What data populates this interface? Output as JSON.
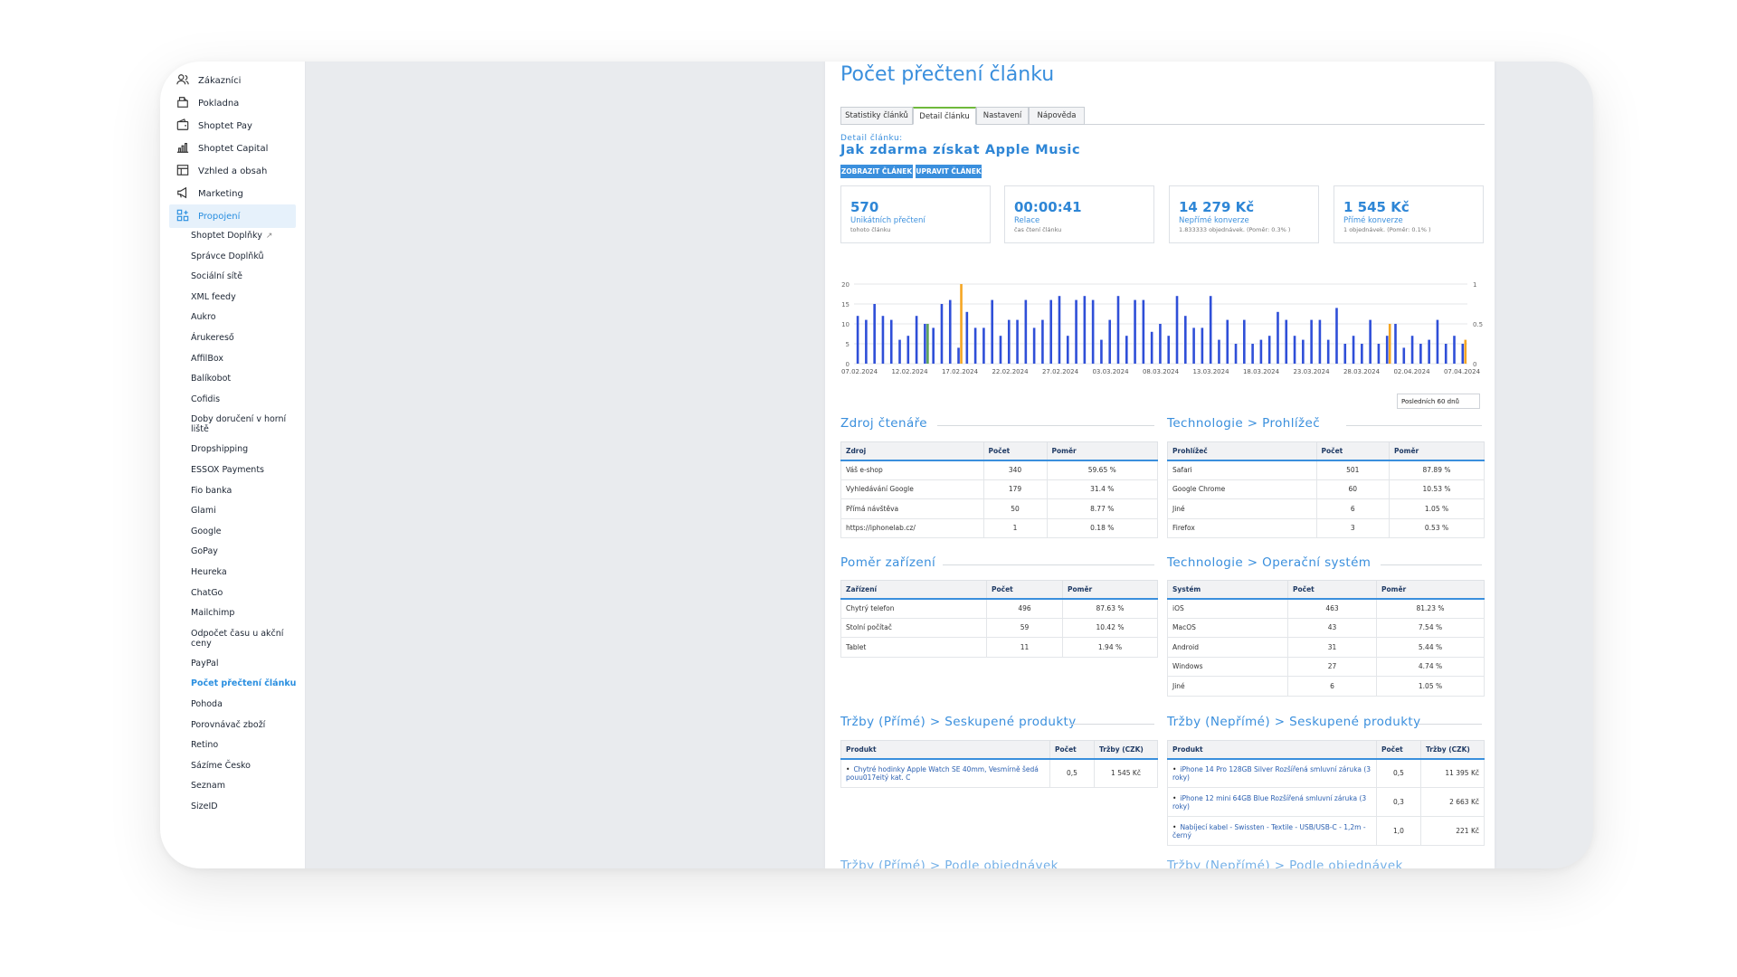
{
  "sidebar": {
    "main_items": [
      {
        "label": "Zákazníci",
        "icon": "customers-icon"
      },
      {
        "label": "Pokladna",
        "icon": "cash-register-icon"
      },
      {
        "label": "Shoptet Pay",
        "icon": "wallet-icon"
      },
      {
        "label": "Shoptet Capital",
        "icon": "capital-icon"
      },
      {
        "label": "Vzhled a obsah",
        "icon": "layout-icon"
      },
      {
        "label": "Marketing",
        "icon": "megaphone-icon"
      },
      {
        "label": "Propojení",
        "icon": "connections-icon"
      }
    ],
    "sub_items": [
      "Shoptet Doplňky",
      "Správce Doplňků",
      "Sociální sítě",
      "XML feedy",
      "Aukro",
      "Árukereső",
      "AffilBox",
      "Balíkobot",
      "Cofidis",
      "Doby doručení v horní liště",
      "Dropshipping",
      "ESSOX Payments",
      "Fio banka",
      "Glami",
      "Google",
      "GoPay",
      "Heureka",
      "ChatGo",
      "Mailchimp",
      "Odpočet času u akční ceny",
      "PayPal",
      "Počet přečtení článku",
      "Pohoda",
      "Porovnávač zboží",
      "Retino",
      "Sázíme Česko",
      "Seznam",
      "SizeID"
    ]
  },
  "page": {
    "title": "Počet přečtení článku",
    "tabs": [
      "Statistiky článků",
      "Detail článku",
      "Nastavení",
      "Nápověda"
    ],
    "detail_label": "Detail článku:",
    "article_title": "Jak zdarma získat Apple Music",
    "btn_show": "ZOBRAZIT ČLÁNEK",
    "btn_edit": "UPRAVIT ČLÁNEK"
  },
  "cards": [
    {
      "value": "570",
      "label": "Unikátních přečtení",
      "sub": "tohoto článku"
    },
    {
      "value": "00:00:41",
      "label": "Relace",
      "sub": "čas čtení článku"
    },
    {
      "value": "14 279 Kč",
      "label": "Nepřímé konverze",
      "sub": "1.833333 objednávek. (Poměr: 0.3% )"
    },
    {
      "value": "1 545 Kč",
      "label": "Přímé konverze",
      "sub": "1 objednávek. (Poměr: 0.1% )"
    }
  ],
  "chart_data": {
    "type": "bar",
    "x_tick_labels": [
      "07.02.2024",
      "12.02.2024",
      "17.02.2024",
      "22.02.2024",
      "27.02.2024",
      "03.03.2024",
      "08.03.2024",
      "13.03.2024",
      "18.03.2024",
      "23.03.2024",
      "28.03.2024",
      "02.04.2024",
      "07.04.2024"
    ],
    "ylim": [
      0,
      20
    ],
    "y_ticks": [
      0,
      5,
      10,
      15,
      20
    ],
    "y2lim": [
      0,
      1
    ],
    "y2_ticks": [
      "0",
      "0.5",
      "1"
    ],
    "series": [
      {
        "values": [
          12,
          11,
          15,
          12,
          11,
          6,
          7,
          12,
          10,
          9,
          15,
          16,
          4,
          13,
          9,
          9,
          16,
          7,
          11,
          11,
          16,
          9,
          11,
          16,
          17,
          7,
          16,
          17,
          16,
          6,
          11,
          17,
          7,
          16,
          16,
          8,
          10,
          7,
          17,
          12,
          9,
          9,
          17,
          6,
          11,
          5,
          11,
          5,
          6,
          7,
          13,
          11,
          7,
          6,
          11,
          11,
          6,
          14,
          5,
          7,
          5,
          11,
          5,
          7,
          10,
          4,
          7,
          5,
          6,
          11,
          5,
          7,
          5
        ],
        "color": "#2f4fd8"
      },
      {
        "points": [
          {
            "index": 8,
            "value": 10
          }
        ],
        "color": "#5aa05a"
      },
      {
        "points": [
          {
            "index": 12,
            "value": 20
          },
          {
            "index": 63,
            "value": 10
          },
          {
            "index": 72,
            "value": 6
          }
        ],
        "color": "#f5a623"
      }
    ],
    "range_label": "Posledních 60 dnů",
    "grid": true
  },
  "tables": {
    "zdroj": {
      "title": "Zdroj čtenáře",
      "headers": [
        "Zdroj",
        "Počet",
        "Poměr"
      ],
      "rows": [
        [
          "Váš e-shop",
          "340",
          "59.65 %"
        ],
        [
          "Vyhledávání Google",
          "179",
          "31.4 %"
        ],
        [
          "Přímá návštěva",
          "50",
          "8.77 %"
        ],
        [
          "https://iphonelab.cz/",
          "1",
          "0.18 %"
        ]
      ]
    },
    "prohlizec": {
      "title": "Technologie > Prohlížeč",
      "headers": [
        "Prohlížeč",
        "Počet",
        "Poměr"
      ],
      "rows": [
        [
          "Safari",
          "501",
          "87.89 %"
        ],
        [
          "Google Chrome",
          "60",
          "10.53 %"
        ],
        [
          "Jiné",
          "6",
          "1.05 %"
        ],
        [
          "Firefox",
          "3",
          "0.53 %"
        ]
      ]
    },
    "zarizeni": {
      "title": "Poměr zařízení",
      "headers": [
        "Zařízení",
        "Počet",
        "Poměr"
      ],
      "rows": [
        [
          "Chytrý telefon",
          "496",
          "87.63 %"
        ],
        [
          "Stolní počítač",
          "59",
          "10.42 %"
        ],
        [
          "Tablet",
          "11",
          "1.94 %"
        ]
      ]
    },
    "system": {
      "title": "Technologie > Operační systém",
      "headers": [
        "Systém",
        "Počet",
        "Poměr"
      ],
      "rows": [
        [
          "iOS",
          "463",
          "81.23 %"
        ],
        [
          "MacOS",
          "43",
          "7.54 %"
        ],
        [
          "Android",
          "31",
          "5.44 %"
        ],
        [
          "Windows",
          "27",
          "4.74 %"
        ],
        [
          "Jiné",
          "6",
          "1.05 %"
        ]
      ]
    },
    "prime": {
      "title": "Tržby (Přímé) > Seskupené produkty",
      "headers": [
        "Produkt",
        "Počet",
        "Tržby (CZK)"
      ],
      "rows": [
        [
          "Chytré hodinky Apple Watch SE 40mm, Vesmírně šedá pouu017eitý kat. C",
          "0,5",
          "1 545 Kč"
        ]
      ]
    },
    "neprime": {
      "title": "Tržby (Nepřímé) > Seskupené produkty",
      "headers": [
        "Produkt",
        "Počet",
        "Tržby (CZK)"
      ],
      "rows": [
        [
          "iPhone 14 Pro 128GB Silver Rozšířená smluvní záruka (3 roky)",
          "0,5",
          "11 395 Kč"
        ],
        [
          "iPhone 12 mini 64GB Blue Rozšířená smluvní záruka (3 roky)",
          "0,3",
          "2 663 Kč"
        ],
        [
          "Nabíjecí kabel - Swissten - Textile - USB/USB-C - 1,2m - černý",
          "1,0",
          "221 Kč"
        ]
      ]
    },
    "bottom_left_title": "Tržby (Přímé) > Podle objednávek",
    "bottom_right_title": "Tržby (Nepřímé) > Podle objednávek"
  },
  "colors": {
    "accent": "#3a8fdd",
    "bars": "#2f4fd8",
    "highlight": "#f5a623",
    "green": "#5aa05a"
  }
}
